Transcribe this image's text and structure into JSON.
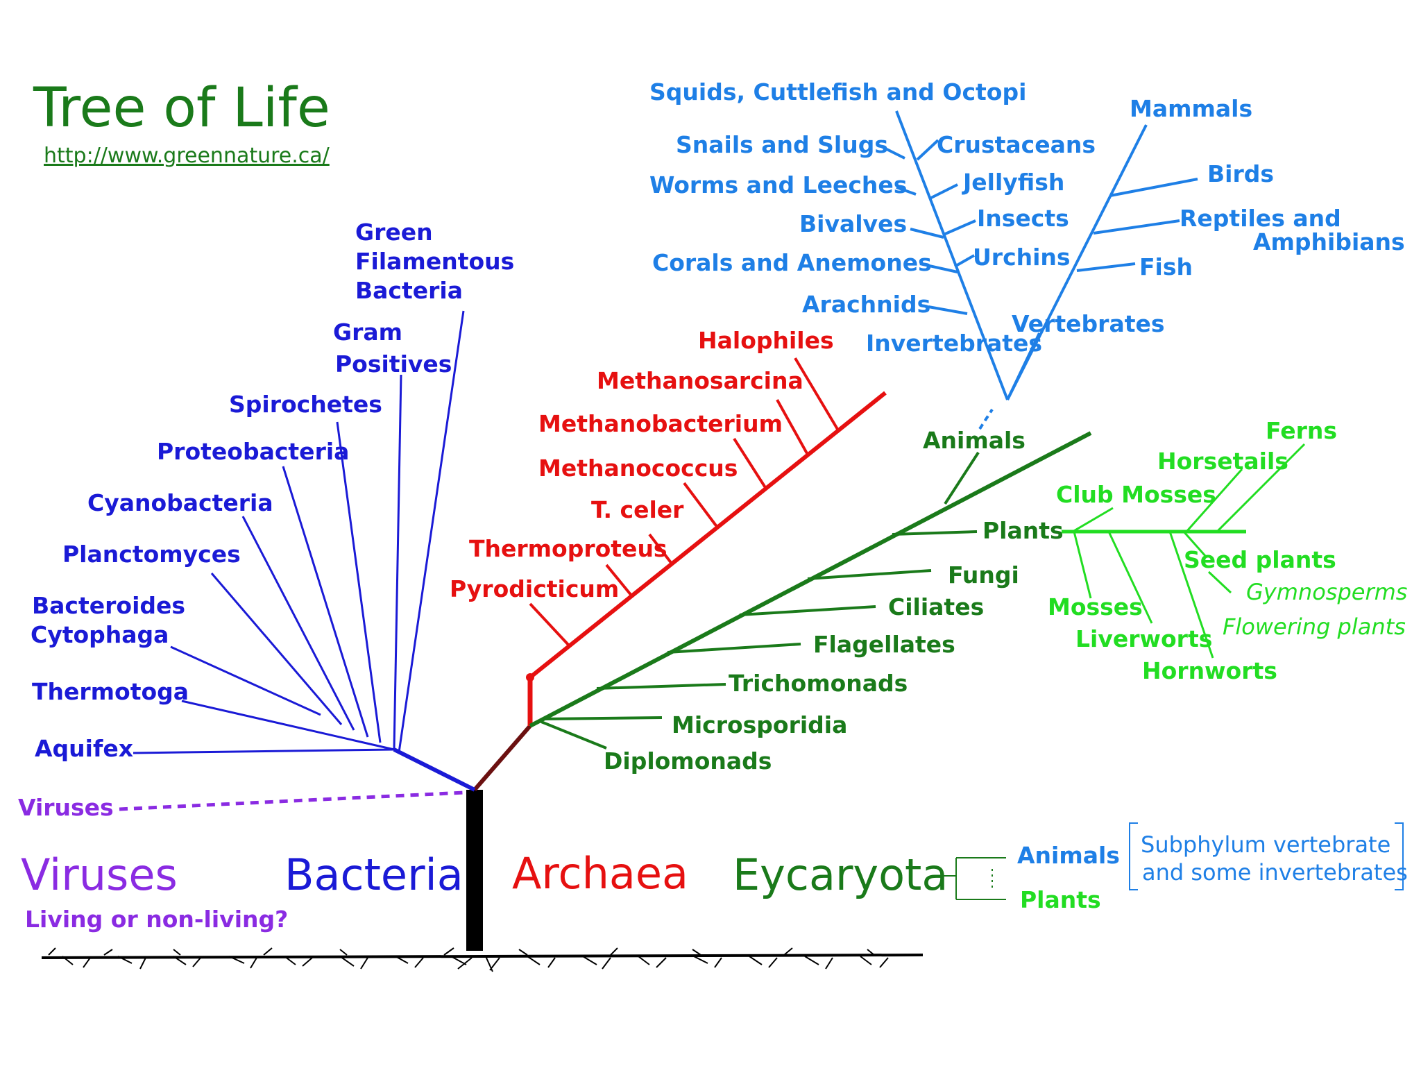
{
  "title": "Tree of Life",
  "url": "http://www.greennature.ca/",
  "colors": {
    "bacteria": "#1a1ad6",
    "archaea": "#e61010",
    "eukaryote": "#1a7a1a",
    "plants": "#22dd22",
    "animals": "#1e7fe6",
    "viruses": "#8a2be2",
    "trunk": "#000000",
    "stem": "#6b1010"
  },
  "domains": {
    "viruses": "Viruses",
    "viruses_question": "Living or non-living?",
    "bacteria": "Bacteria",
    "archaea": "Archaea",
    "eycaryota": "Eycaryota"
  },
  "bacteria": {
    "green_filamentous_1": "Green",
    "green_filamentous_2": "Filamentous",
    "green_filamentous_3": "Bacteria",
    "gram_1": "Gram",
    "gram_2": "Positives",
    "spirochetes": "Spirochetes",
    "proteobacteria": "Proteobacteria",
    "cyanobacteria": "Cyanobacteria",
    "planctomyces": "Planctomyces",
    "bacteroides_1": "Bacteroides",
    "bacteroides_2": "Cytophaga",
    "thermotoga": "Thermotoga",
    "aquifex": "Aquifex"
  },
  "viruses_branch": "Viruses",
  "archaea": {
    "halophiles": "Halophiles",
    "methanosarcina": "Methanosarcina",
    "methanobacterium": "Methanobacterium",
    "methanococcus": "Methanococcus",
    "t_celer": "T. celer",
    "thermoproteus": "Thermoproteus",
    "pyrodicticum": "Pyrodicticum"
  },
  "eukaryotes": {
    "animals": "Animals",
    "plants": "Plants",
    "fungi": "Fungi",
    "ciliates": "Ciliates",
    "flagellates": "Flagellates",
    "trichomonads": "Trichomonads",
    "microsporidia": "Microsporidia",
    "diplomonads": "Diplomonads"
  },
  "plants": {
    "ferns": "Ferns",
    "horsetails": "Horsetails",
    "club_mosses": "Club Mosses",
    "seed_plants": "Seed plants",
    "gymnosperms": "Gymnosperms",
    "flowering_plants": "Flowering plants",
    "mosses": "Mosses",
    "liverworts": "Liverworts",
    "hornworts": "Hornworts"
  },
  "animals": {
    "squids": "Squids, Cuttlefish and Octopi",
    "snails": "Snails and Slugs",
    "worms": "Worms and Leeches",
    "bivalves": "Bivalves",
    "corals": "Corals and Anemones",
    "arachnids": "Arachnids",
    "invertebrates": "Invertebrates",
    "crustaceans": "Crustaceans",
    "jellyfish": "Jellyfish",
    "insects": "Insects",
    "urchins": "Urchins",
    "mammals": "Mammals",
    "birds": "Birds",
    "reptiles_1": "Reptiles and",
    "reptiles_2": "Amphibians",
    "fish": "Fish",
    "vertebrates": "Vertebrates"
  },
  "legend": {
    "animals": "Animals",
    "plants": "Plants",
    "note_1": "Subphylum vertebrate",
    "note_2": "and some invertebrates"
  }
}
